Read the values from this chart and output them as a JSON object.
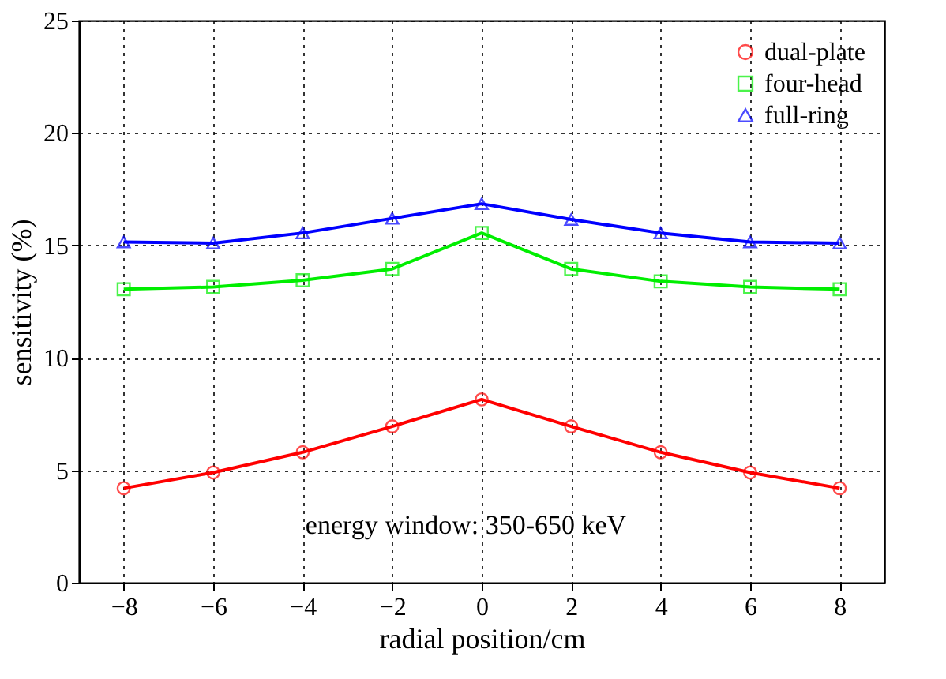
{
  "chart_data": {
    "type": "line",
    "xlabel": "radial position/cm",
    "ylabel": "sensitivity (%)",
    "x": [
      -8,
      -6,
      -4,
      -2,
      0,
      2,
      4,
      6,
      8
    ],
    "series": [
      {
        "name": "dual-plate",
        "color": "#ff0000",
        "marker": "circle",
        "values": [
          4.2,
          4.9,
          5.8,
          6.95,
          8.15,
          6.95,
          5.8,
          4.9,
          4.2
        ]
      },
      {
        "name": "four-head",
        "color": "#00ee00",
        "marker": "square",
        "values": [
          13.05,
          13.15,
          13.45,
          13.95,
          15.55,
          13.95,
          13.4,
          13.15,
          13.05
        ]
      },
      {
        "name": "full-ring",
        "color": "#0000ff",
        "marker": "triangle",
        "values": [
          15.15,
          15.1,
          15.55,
          16.2,
          16.85,
          16.15,
          15.55,
          15.15,
          15.1
        ]
      }
    ],
    "xlim": [
      -9,
      9
    ],
    "xticks": [
      -8,
      -6,
      -4,
      -2,
      0,
      2,
      4,
      6,
      8
    ],
    "ylim": [
      0,
      25
    ],
    "yticks": [
      0,
      5,
      10,
      15,
      20,
      25
    ],
    "grid": true,
    "legend": "top right",
    "line_style": "solid",
    "annotations": [
      "energy window: 350-650 keV"
    ]
  }
}
